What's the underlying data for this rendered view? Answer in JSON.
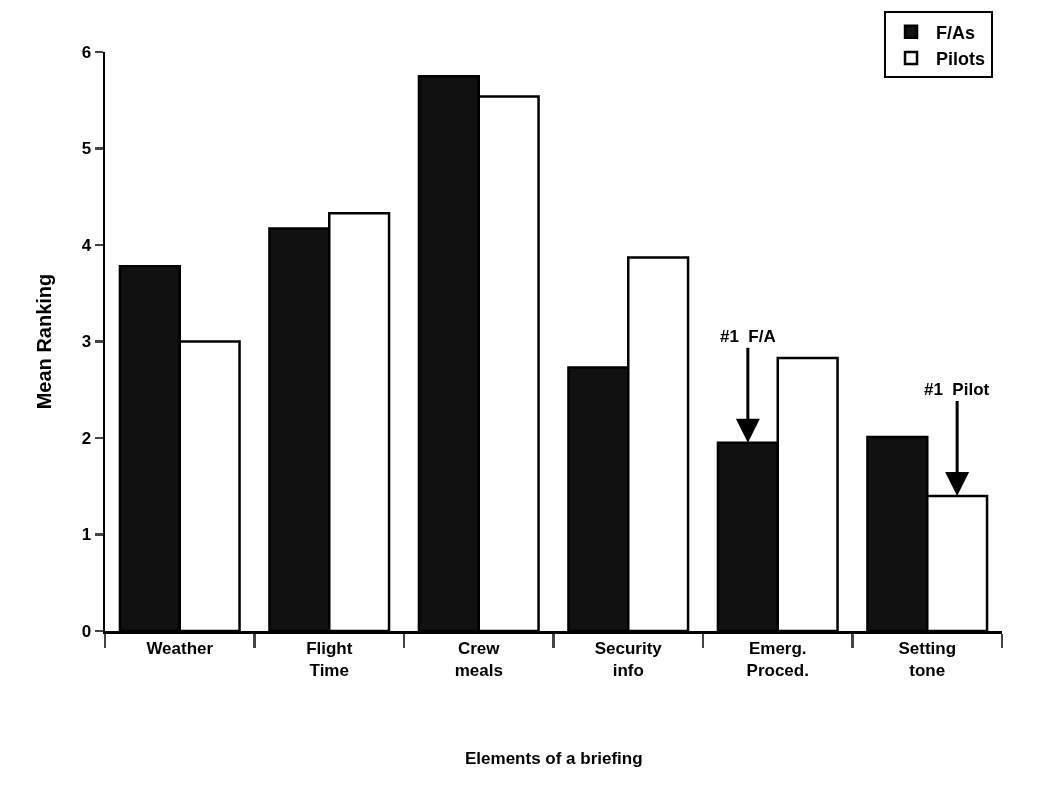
{
  "chart_data": {
    "type": "bar",
    "xlabel": "Elements of a briefing",
    "ylabel": "Mean Ranking",
    "categories": [
      "Weather",
      "Flight Time",
      "Crew meals",
      "Security info",
      "Emerg. Proced.",
      "Setting tone"
    ],
    "series": [
      {
        "name": "F/As",
        "color": "#111111",
        "values": [
          3.78,
          4.17,
          5.75,
          2.73,
          1.95,
          2.01
        ]
      },
      {
        "name": "Pilots",
        "color": "#ffffff",
        "values": [
          3.0,
          4.33,
          5.54,
          3.87,
          2.83,
          1.4
        ]
      }
    ],
    "ylim": [
      0,
      6
    ],
    "yticks": [
      0,
      1,
      2,
      3,
      4,
      5,
      6
    ],
    "grid": false,
    "legend": "top right",
    "annotations": [
      {
        "text": "#1  F/A",
        "y": 1.95
      },
      {
        "text": "#1  Pilot",
        "y": 1.4
      }
    ]
  }
}
